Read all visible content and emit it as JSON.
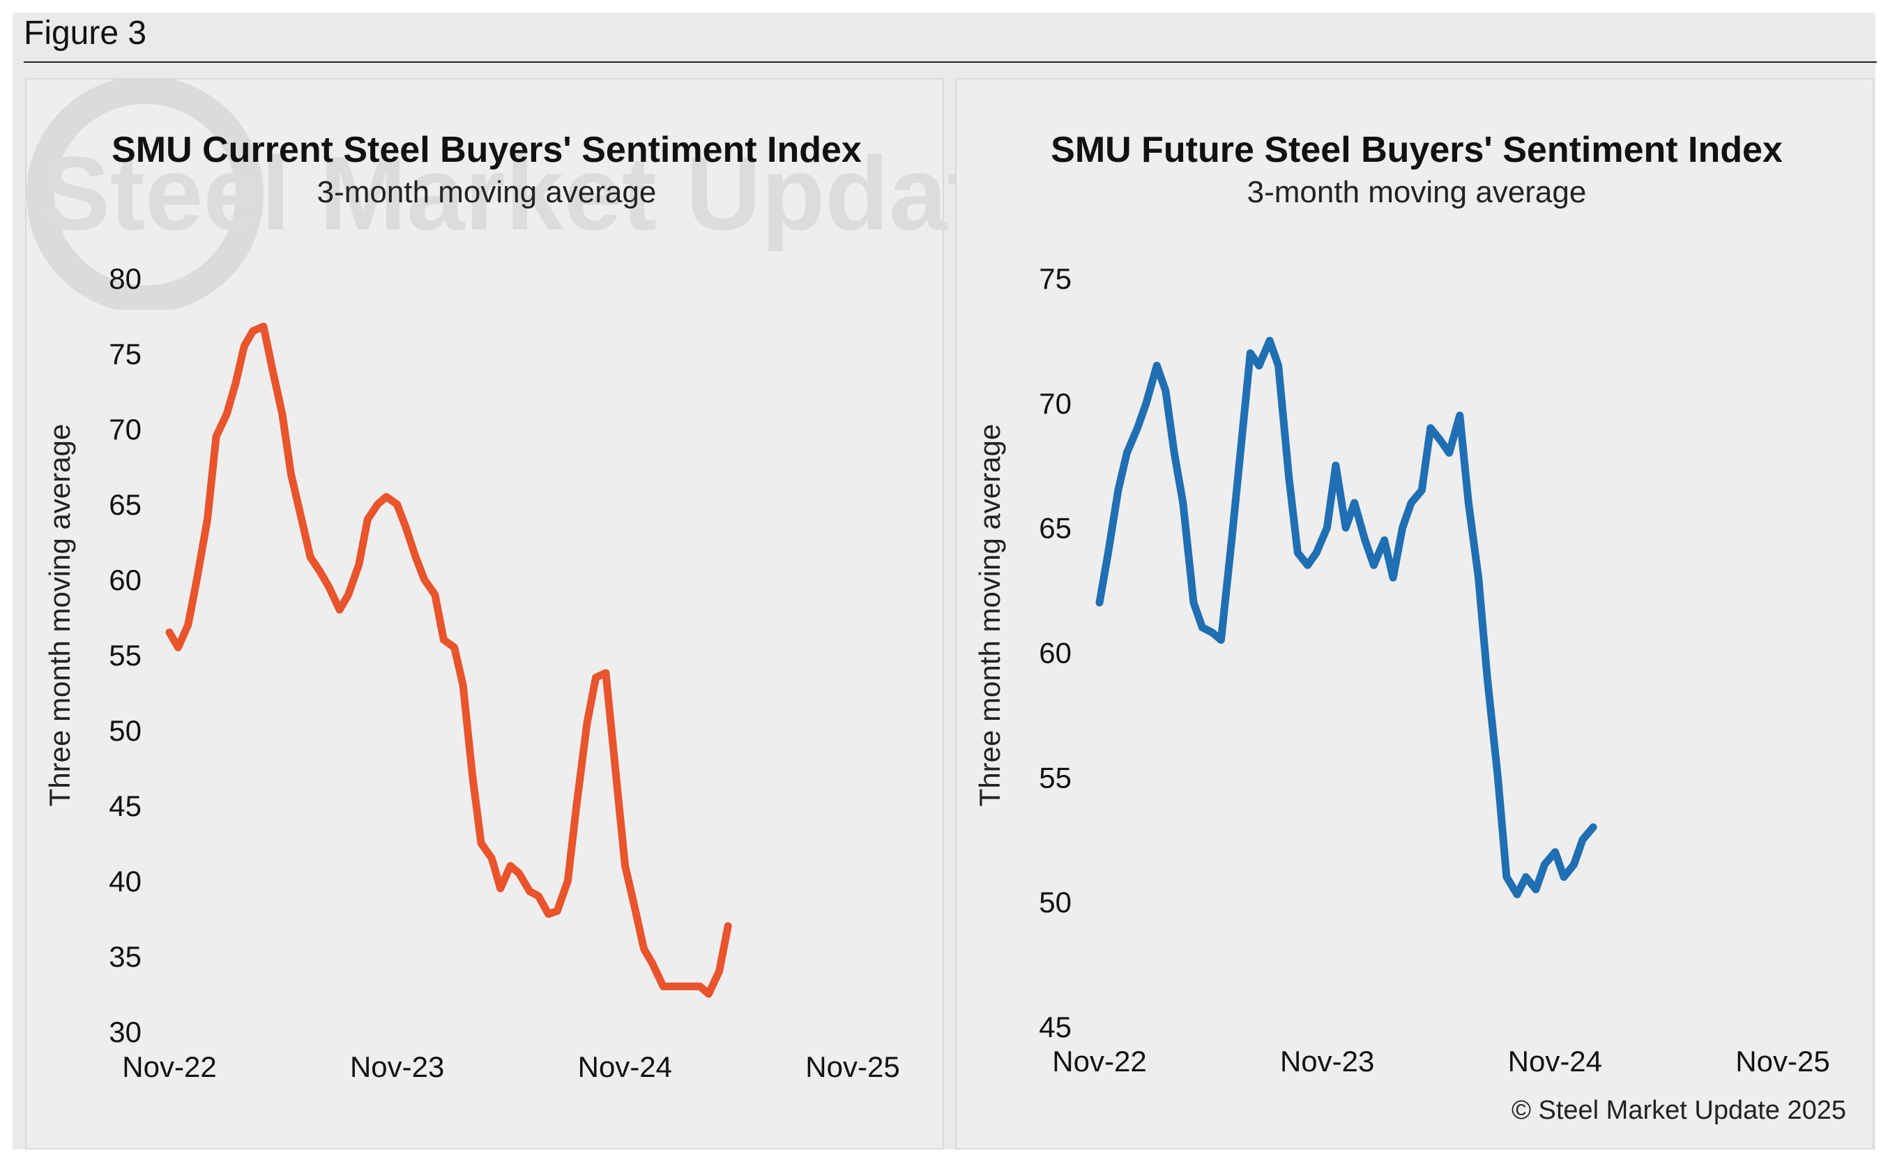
{
  "figure_label": "Figure 3",
  "watermark_text": "Steel Market Update",
  "copyright": "© Steel Market Update 2025",
  "chart_data": [
    {
      "type": "line",
      "title": "SMU Current Steel Buyers' Sentiment Index",
      "subtitle": "3-month moving average",
      "ylabel": "Three month moving average",
      "xlabel": "",
      "ylim": [
        30,
        80
      ],
      "yticks": [
        30,
        35,
        40,
        45,
        50,
        55,
        60,
        65,
        70,
        75,
        80
      ],
      "xtick_labels": [
        "Nov-22",
        "Nov-23",
        "Nov-24",
        "Nov-25"
      ],
      "x_start": "2022-11-01",
      "x_end": "2025-11-01",
      "grid": false,
      "color": "#E8542C",
      "series": [
        {
          "values": [
            {
              "x": "2022-11-01",
              "y": 56.5
            },
            {
              "x": "2022-11-15",
              "y": 55.5
            },
            {
              "x": "2022-12-01",
              "y": 57.0
            },
            {
              "x": "2022-12-15",
              "y": 60.0
            },
            {
              "x": "2023-01-01",
              "y": 64.0
            },
            {
              "x": "2023-01-15",
              "y": 69.5
            },
            {
              "x": "2023-02-01",
              "y": 71.0
            },
            {
              "x": "2023-02-15",
              "y": 73.0
            },
            {
              "x": "2023-03-01",
              "y": 75.5
            },
            {
              "x": "2023-03-15",
              "y": 76.5
            },
            {
              "x": "2023-04-01",
              "y": 76.8
            },
            {
              "x": "2023-04-15",
              "y": 74.0
            },
            {
              "x": "2023-05-01",
              "y": 71.0
            },
            {
              "x": "2023-05-15",
              "y": 67.0
            },
            {
              "x": "2023-06-01",
              "y": 64.0
            },
            {
              "x": "2023-06-15",
              "y": 61.5
            },
            {
              "x": "2023-07-01",
              "y": 60.5
            },
            {
              "x": "2023-07-15",
              "y": 59.5
            },
            {
              "x": "2023-08-01",
              "y": 58.0
            },
            {
              "x": "2023-08-15",
              "y": 59.0
            },
            {
              "x": "2023-09-01",
              "y": 61.0
            },
            {
              "x": "2023-09-15",
              "y": 64.0
            },
            {
              "x": "2023-10-01",
              "y": 65.0
            },
            {
              "x": "2023-10-15",
              "y": 65.5
            },
            {
              "x": "2023-11-01",
              "y": 65.0
            },
            {
              "x": "2023-11-15",
              "y": 63.5
            },
            {
              "x": "2023-12-01",
              "y": 61.5
            },
            {
              "x": "2023-12-15",
              "y": 60.0
            },
            {
              "x": "2024-01-01",
              "y": 59.0
            },
            {
              "x": "2024-01-15",
              "y": 56.0
            },
            {
              "x": "2024-02-01",
              "y": 55.5
            },
            {
              "x": "2024-02-15",
              "y": 53.0
            },
            {
              "x": "2024-03-01",
              "y": 47.0
            },
            {
              "x": "2024-03-15",
              "y": 42.5
            },
            {
              "x": "2024-04-01",
              "y": 41.5
            },
            {
              "x": "2024-04-15",
              "y": 39.5
            },
            {
              "x": "2024-05-01",
              "y": 41.0
            },
            {
              "x": "2024-05-15",
              "y": 40.5
            },
            {
              "x": "2024-06-01",
              "y": 39.3
            },
            {
              "x": "2024-06-15",
              "y": 39.0
            },
            {
              "x": "2024-07-01",
              "y": 37.8
            },
            {
              "x": "2024-07-15",
              "y": 38.0
            },
            {
              "x": "2024-08-01",
              "y": 40.0
            },
            {
              "x": "2024-08-15",
              "y": 45.0
            },
            {
              "x": "2024-09-01",
              "y": 50.5
            },
            {
              "x": "2024-09-15",
              "y": 53.5
            },
            {
              "x": "2024-10-01",
              "y": 53.8
            },
            {
              "x": "2024-10-15",
              "y": 48.0
            },
            {
              "x": "2024-11-01",
              "y": 41.0
            },
            {
              "x": "2024-11-15",
              "y": 38.5
            },
            {
              "x": "2024-12-01",
              "y": 35.5
            },
            {
              "x": "2024-12-15",
              "y": 34.5
            },
            {
              "x": "2025-01-01",
              "y": 33.0
            },
            {
              "x": "2025-02-01",
              "y": 33.0
            },
            {
              "x": "2025-03-01",
              "y": 33.0
            },
            {
              "x": "2025-03-15",
              "y": 32.5
            },
            {
              "x": "2025-04-01",
              "y": 34.0
            },
            {
              "x": "2025-04-15",
              "y": 37.0
            }
          ]
        }
      ]
    },
    {
      "type": "line",
      "title": "SMU Future Steel Buyers' Sentiment Index",
      "subtitle": "3-month moving average",
      "ylabel": "Three month moving average",
      "xlabel": "",
      "ylim": [
        45,
        75
      ],
      "yticks": [
        45,
        50,
        55,
        60,
        65,
        70,
        75
      ],
      "xtick_labels": [
        "Nov-22",
        "Nov-23",
        "Nov-24",
        "Nov-25"
      ],
      "x_start": "2022-11-01",
      "x_end": "2025-11-01",
      "grid": false,
      "color": "#1F6FB2",
      "series": [
        {
          "values": [
            {
              "x": "2022-11-01",
              "y": 62.0
            },
            {
              "x": "2022-11-15",
              "y": 64.0
            },
            {
              "x": "2022-12-01",
              "y": 66.5
            },
            {
              "x": "2022-12-15",
              "y": 68.0
            },
            {
              "x": "2023-01-01",
              "y": 69.0
            },
            {
              "x": "2023-01-15",
              "y": 70.0
            },
            {
              "x": "2023-02-01",
              "y": 71.5
            },
            {
              "x": "2023-02-15",
              "y": 70.5
            },
            {
              "x": "2023-03-01",
              "y": 68.0
            },
            {
              "x": "2023-03-15",
              "y": 66.0
            },
            {
              "x": "2023-04-01",
              "y": 62.0
            },
            {
              "x": "2023-04-15",
              "y": 61.0
            },
            {
              "x": "2023-05-01",
              "y": 60.8
            },
            {
              "x": "2023-05-15",
              "y": 60.5
            },
            {
              "x": "2023-06-01",
              "y": 64.5
            },
            {
              "x": "2023-06-15",
              "y": 68.0
            },
            {
              "x": "2023-07-01",
              "y": 72.0
            },
            {
              "x": "2023-07-15",
              "y": 71.5
            },
            {
              "x": "2023-08-01",
              "y": 72.5
            },
            {
              "x": "2023-08-15",
              "y": 71.5
            },
            {
              "x": "2023-09-01",
              "y": 67.0
            },
            {
              "x": "2023-09-15",
              "y": 64.0
            },
            {
              "x": "2023-10-01",
              "y": 63.5
            },
            {
              "x": "2023-10-15",
              "y": 64.0
            },
            {
              "x": "2023-11-01",
              "y": 65.0
            },
            {
              "x": "2023-11-15",
              "y": 67.5
            },
            {
              "x": "2023-12-01",
              "y": 65.0
            },
            {
              "x": "2023-12-15",
              "y": 66.0
            },
            {
              "x": "2024-01-01",
              "y": 64.5
            },
            {
              "x": "2024-01-15",
              "y": 63.5
            },
            {
              "x": "2024-02-01",
              "y": 64.5
            },
            {
              "x": "2024-02-15",
              "y": 63.0
            },
            {
              "x": "2024-03-01",
              "y": 65.0
            },
            {
              "x": "2024-03-15",
              "y": 66.0
            },
            {
              "x": "2024-04-01",
              "y": 66.5
            },
            {
              "x": "2024-04-15",
              "y": 69.0
            },
            {
              "x": "2024-05-01",
              "y": 68.5
            },
            {
              "x": "2024-05-15",
              "y": 68.0
            },
            {
              "x": "2024-06-01",
              "y": 69.5
            },
            {
              "x": "2024-06-15",
              "y": 66.0
            },
            {
              "x": "2024-07-01",
              "y": 63.0
            },
            {
              "x": "2024-07-15",
              "y": 59.0
            },
            {
              "x": "2024-08-01",
              "y": 55.0
            },
            {
              "x": "2024-08-15",
              "y": 51.0
            },
            {
              "x": "2024-09-01",
              "y": 50.3
            },
            {
              "x": "2024-09-15",
              "y": 51.0
            },
            {
              "x": "2024-10-01",
              "y": 50.5
            },
            {
              "x": "2024-10-15",
              "y": 51.5
            },
            {
              "x": "2024-11-01",
              "y": 52.0
            },
            {
              "x": "2024-11-15",
              "y": 51.0
            },
            {
              "x": "2024-12-01",
              "y": 51.5
            },
            {
              "x": "2024-12-15",
              "y": 52.5
            },
            {
              "x": "2025-01-01",
              "y": 53.0
            }
          ]
        }
      ]
    }
  ]
}
